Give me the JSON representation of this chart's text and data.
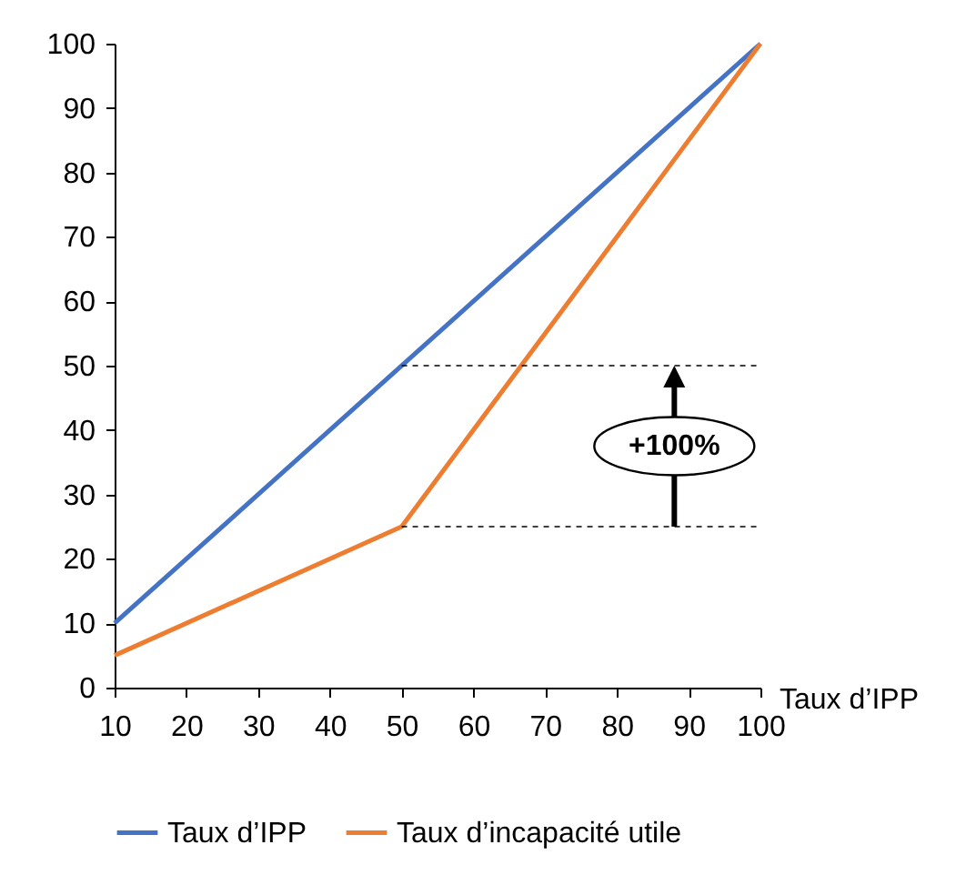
{
  "chart_data": {
    "type": "line",
    "xlabel": "Taux d’IPP",
    "x": [
      10,
      100
    ],
    "series": [
      {
        "name": "Taux d’IPP",
        "color": "#4472c4",
        "values": [
          10,
          100
        ]
      },
      {
        "name": "Taux d’incapacité utile",
        "color": "#ed7d31",
        "x": [
          10,
          50,
          100
        ],
        "values": [
          5,
          25,
          100
        ]
      },
      {
        "color": "#000000",
        "x": [
          50,
          100
        ],
        "values": [
          50,
          50
        ],
        "line_style": "dashed"
      },
      {
        "color": "#000000",
        "x": [
          50,
          100
        ],
        "values": [
          25,
          25
        ],
        "line_style": "dashed"
      }
    ],
    "xlim": [
      10,
      100
    ],
    "xticks": [
      10,
      20,
      30,
      40,
      50,
      60,
      70,
      80,
      90,
      100
    ],
    "ylim": [
      0,
      100
    ],
    "yticks": [
      0,
      10,
      20,
      30,
      40,
      50,
      60,
      70,
      80,
      90,
      100
    ],
    "annotations": [
      "+100%"
    ],
    "grid": false,
    "legend": "bottom",
    "marker": "none"
  }
}
